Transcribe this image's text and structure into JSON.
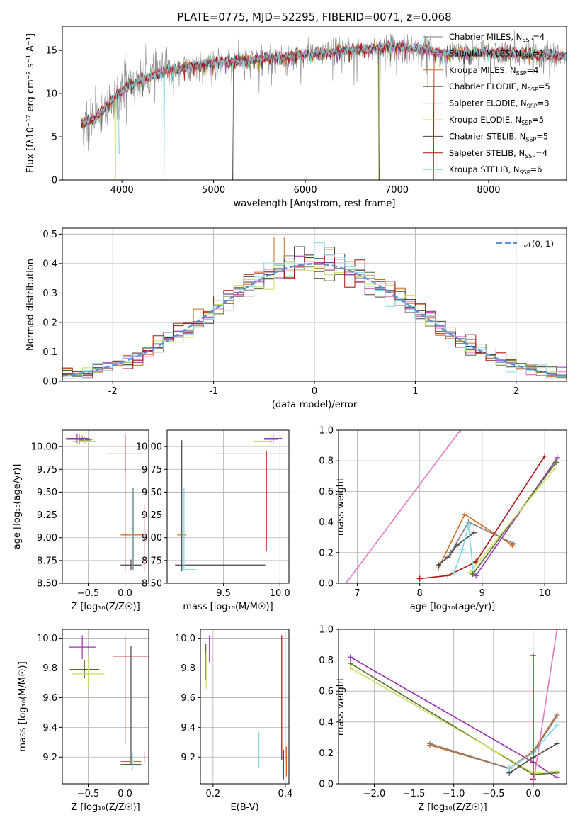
{
  "colors": {
    "ChabrierMILES": "#7f7f7f",
    "SalpeterMILES": "#e377c2",
    "KroupaMILES": "#d2691e",
    "ChabrierELODIE": "#556b2f",
    "SalpeterELODIE": "#9b30b5",
    "KroupaELODIE": "#c6e05a",
    "ChabrierSTELIB": "#444444",
    "SalpeterSTELIB": "#b01010",
    "KroupaSTELIB": "#7fd9e0",
    "gauss": "#5b8fd6"
  },
  "chart_data": [
    {
      "id": "spectrum",
      "type": "line",
      "title": "PLATE=0775, MJD=52295, FIBERID=0071, z=0.068",
      "xlabel": "wavelength [Angstrom, rest frame]",
      "ylabel": "Flux [fλ10⁻¹⁷ erg cm⁻² s⁻¹ A⁻¹]",
      "xlim": [
        3350,
        8850
      ],
      "ylim": [
        0,
        17.8
      ],
      "xticks": [
        4000,
        5000,
        6000,
        7000,
        8000
      ],
      "yticks": [
        0,
        5,
        10,
        15
      ],
      "grid": false,
      "legend_position": "right",
      "legend": [
        {
          "key": "ChabrierMILES",
          "label": "Chabrier MILES, N",
          "sub": "SSP",
          "tail": "=4"
        },
        {
          "key": "SalpeterMILES",
          "label": "Salpeter MILES, N",
          "sub": "SSP",
          "tail": "=2"
        },
        {
          "key": "KroupaMILES",
          "label": "Kroupa MILES, N",
          "sub": "SSP",
          "tail": "=4"
        },
        {
          "key": "ChabrierELODIE",
          "label": "Chabrier ELODIE, N",
          "sub": "SSP",
          "tail": "=5"
        },
        {
          "key": "SalpeterELODIE",
          "label": "Salpeter ELODIE, N",
          "sub": "SSP",
          "tail": "=3"
        },
        {
          "key": "KroupaELODIE",
          "label": "Kroupa ELODIE, N",
          "sub": "SSP",
          "tail": "=5"
        },
        {
          "key": "ChabrierSTELIB",
          "label": "Chabrier STELIB, N",
          "sub": "SSP",
          "tail": "=5"
        },
        {
          "key": "SalpeterSTELIB",
          "label": "Salpeter STELIB, N",
          "sub": "SSP",
          "tail": "=4"
        },
        {
          "key": "KroupaSTELIB",
          "label": "Kroupa STELIB, N",
          "sub": "SSP",
          "tail": "=6"
        }
      ],
      "continuum": [
        [
          3560,
          6.6
        ],
        [
          3700,
          7.0
        ],
        [
          3900,
          9.4
        ],
        [
          4000,
          10.4
        ],
        [
          4200,
          11.6
        ],
        [
          4500,
          12.7
        ],
        [
          5000,
          13.6
        ],
        [
          5500,
          14.0
        ],
        [
          6000,
          14.5
        ],
        [
          6500,
          15.0
        ],
        [
          6800,
          15.3
        ],
        [
          7000,
          15.4
        ],
        [
          7300,
          15.2
        ],
        [
          7500,
          14.6
        ],
        [
          8000,
          14.8
        ],
        [
          8400,
          14.6
        ],
        [
          8850,
          14.3
        ]
      ],
      "absorption": [
        [
          3930,
          0.2,
          "KroupaELODIE"
        ],
        [
          3970,
          3.0,
          "KroupaSTELIB"
        ],
        [
          4460,
          0.0,
          "KroupaSTELIB"
        ],
        [
          5205,
          0.0,
          "ChabrierSTELIB"
        ],
        [
          6800,
          0.0,
          "KroupaELODIE"
        ],
        [
          6810,
          0.0,
          "ChabrierSTELIB"
        ],
        [
          7400,
          0.0,
          "SalpeterSTELIB"
        ]
      ]
    },
    {
      "id": "residuals",
      "type": "line",
      "xlabel": "(data-model)/error",
      "ylabel": "Normed distribution",
      "xlim": [
        -2.5,
        2.5
      ],
      "ylim": [
        0,
        0.52
      ],
      "xticks": [
        -2,
        -1,
        0,
        1,
        2
      ],
      "yticks": [
        0.0,
        0.1,
        0.2,
        0.3,
        0.4,
        0.5
      ],
      "ytick_labels": [
        "0.0",
        "0.1",
        "0.2",
        "0.3",
        "0.4",
        "0.5"
      ],
      "grid": true,
      "legend_position": "top-right",
      "gauss_label": "𝒩(0, 1)"
    },
    {
      "id": "age_Z",
      "type": "scatter",
      "xlabel": "Z [log₁₀(Z/Z☉)]",
      "ylabel": "age  [log₁₀(age/yr)]",
      "xlim": [
        -0.85,
        0.32
      ],
      "ylim": [
        8.5,
        10.18
      ],
      "xticks": [
        -0.5,
        0.0
      ],
      "xtick_labels": [
        "−0.5",
        "0.0"
      ],
      "yticks": [
        8.5,
        8.75,
        9.0,
        9.25,
        9.5,
        9.75,
        10.0
      ],
      "ytick_labels": [
        "8.50",
        "8.75",
        "9.00",
        "9.25",
        "9.50",
        "9.75",
        "10.00"
      ],
      "grid": true,
      "crosses": [
        {
          "c": "ChabrierMILES",
          "x": -0.55,
          "y": 10.07,
          "dx": 0.08,
          "dy": 0.04
        },
        {
          "c": "KroupaMILES",
          "x": -0.58,
          "y": 10.09,
          "dx": 0.1,
          "dy": 0.03
        },
        {
          "c": "ChabrierELODIE",
          "x": -0.62,
          "y": 10.08,
          "dx": 0.18,
          "dy": 0.05
        },
        {
          "c": "SalpeterELODIE",
          "x": -0.65,
          "y": 10.09,
          "dx": 0.15,
          "dy": 0.05
        },
        {
          "c": "KroupaELODIE",
          "x": -0.55,
          "y": 10.06,
          "dx": 0.16,
          "dy": 0.03
        },
        {
          "c": "SalpeterSTELIB",
          "x": 0.0,
          "y": 9.92,
          "dx": 0.25,
          "dy": 0.21
        },
        {
          "c": "ChabrierSTELIB",
          "x": 0.08,
          "y": 8.7,
          "dx": 0.14,
          "dy": 0.06
        },
        {
          "c": "KroupaMILES",
          "x": 0.08,
          "y": 9.03,
          "dx": 0.14,
          "dy": 0.0
        },
        {
          "c": "KroupaSTELIB",
          "x": 0.1,
          "y": 9.1,
          "dx": 0.02,
          "dy": 0.45
        },
        {
          "c": "ChabrierMILES",
          "x": 0.11,
          "y": 9.1,
          "dx": 0.0,
          "dy": 0.45
        },
        {
          "c": "SalpeterMILES",
          "x": 0.26,
          "y": 9.0,
          "dx": 0.0,
          "dy": 0.37
        },
        {
          "c": "SalpeterSTELIB",
          "x": 0.0,
          "y": 9.4,
          "dx": 0.0,
          "dy": 0.75
        }
      ]
    },
    {
      "id": "age_mass",
      "type": "scatter",
      "xlabel": "mass [log₁₀(M/M☉)]",
      "xlim": [
        9.0,
        10.08
      ],
      "ylim": [
        8.5,
        10.18
      ],
      "xticks": [
        9.5,
        10.0
      ],
      "xtick_labels": [
        "9.5",
        "10.0"
      ],
      "yticks": [
        8.5,
        8.75,
        9.0,
        9.25,
        9.5,
        9.75,
        10.0
      ],
      "ytick_labels": [
        "8.50",
        "8.75",
        "9.00",
        "9.25",
        "9.50",
        "9.75",
        "10.00"
      ],
      "grid": true,
      "crosses": [
        {
          "c": "ChabrierSTELIB",
          "x": 9.47,
          "y": 8.7,
          "dx": 0.4,
          "dy": 0.0
        },
        {
          "c": "ChabrierSTELIB",
          "x": 9.13,
          "y": 9.35,
          "dx": 0.0,
          "dy": 0.72
        },
        {
          "c": "KroupaMILES",
          "x": 9.13,
          "y": 9.03,
          "dx": 0.04,
          "dy": 0.0
        },
        {
          "c": "KroupaSTELIB",
          "x": 9.15,
          "y": 9.1,
          "dx": 0.0,
          "dy": 0.45
        },
        {
          "c": "KroupaSTELIB",
          "x": 9.2,
          "y": 8.65,
          "dx": 0.06,
          "dy": 0.0
        },
        {
          "c": "SalpeterSTELIB",
          "x": 9.93,
          "y": 9.92,
          "dx": 0.5,
          "dy": 0.0
        },
        {
          "c": "SalpeterSTELIB",
          "x": 9.88,
          "y": 9.4,
          "dx": 0.0,
          "dy": 0.55
        },
        {
          "c": "KroupaELODIE",
          "x": 9.85,
          "y": 10.06,
          "dx": 0.08,
          "dy": 0.03
        },
        {
          "c": "ChabrierELODIE",
          "x": 9.92,
          "y": 10.08,
          "dx": 0.06,
          "dy": 0.05
        },
        {
          "c": "SalpeterELODIE",
          "x": 9.94,
          "y": 10.09,
          "dx": 0.08,
          "dy": 0.05
        }
      ]
    },
    {
      "id": "weight_age",
      "type": "line",
      "xlabel": "age  [log₁₀(age/yr)]",
      "ylabel": "mass weight",
      "xlim": [
        6.7,
        10.35
      ],
      "ylim": [
        0.0,
        1.0
      ],
      "xticks": [
        7,
        8,
        9,
        10
      ],
      "yticks": [
        0.0,
        0.2,
        0.4,
        0.6,
        0.8,
        1.0
      ],
      "ytick_labels": [
        "0.0",
        "0.2",
        "0.4",
        "0.6",
        "0.8",
        "1.0"
      ],
      "grid": true,
      "series": [
        {
          "c": "SalpeterMILES",
          "pts": [
            [
              6.82,
              0.0
            ],
            [
              8.65,
              1.0
            ]
          ]
        },
        {
          "c": "SalpeterSTELIB",
          "pts": [
            [
              8.0,
              0.03
            ],
            [
              8.45,
              0.05
            ],
            [
              8.9,
              0.14
            ],
            [
              10.0,
              0.83
            ]
          ]
        },
        {
          "c": "SalpeterELODIE",
          "pts": [
            [
              8.9,
              0.05
            ],
            [
              10.2,
              0.82
            ]
          ]
        },
        {
          "c": "ChabrierELODIE",
          "pts": [
            [
              8.85,
              0.06
            ],
            [
              10.18,
              0.79
            ]
          ]
        },
        {
          "c": "KroupaELODIE",
          "pts": [
            [
              8.8,
              0.07
            ],
            [
              10.16,
              0.75
            ]
          ]
        },
        {
          "c": "KroupaMILES",
          "pts": [
            [
              8.3,
              0.1
            ],
            [
              8.72,
              0.45
            ],
            [
              9.48,
              0.25
            ]
          ]
        },
        {
          "c": "ChabrierMILES",
          "pts": [
            [
              8.5,
              0.2
            ],
            [
              8.78,
              0.4
            ],
            [
              9.5,
              0.26
            ]
          ]
        },
        {
          "c": "ChabrierSTELIB",
          "pts": [
            [
              8.3,
              0.12
            ],
            [
              8.45,
              0.17
            ],
            [
              8.6,
              0.25
            ],
            [
              8.87,
              0.33
            ]
          ]
        },
        {
          "c": "KroupaSTELIB",
          "pts": [
            [
              8.55,
              0.07
            ],
            [
              8.68,
              0.22
            ],
            [
              8.78,
              0.38
            ],
            [
              8.85,
              0.1
            ]
          ]
        }
      ]
    },
    {
      "id": "mass_Z",
      "type": "scatter",
      "xlabel": "Z [log₁₀(Z/Z☉)]",
      "ylabel": "mass [log₁₀(M/M☉)]",
      "xlim": [
        -0.85,
        0.32
      ],
      "ylim": [
        9.02,
        10.06
      ],
      "xticks": [
        -0.5,
        0.0
      ],
      "xtick_labels": [
        "−0.5",
        "0.0"
      ],
      "yticks": [
        9.2,
        9.4,
        9.6,
        9.8,
        10.0
      ],
      "ytick_labels": [
        "9.2",
        "9.4",
        "9.6",
        "9.8",
        "10.0"
      ],
      "grid": true,
      "crosses": [
        {
          "c": "SalpeterELODIE",
          "x": -0.58,
          "y": 9.94,
          "dx": 0.18,
          "dy": 0.08
        },
        {
          "c": "ChabrierELODIE",
          "x": -0.55,
          "y": 9.79,
          "dx": 0.2,
          "dy": 0.06
        },
        {
          "c": "KroupaELODIE",
          "x": -0.5,
          "y": 9.76,
          "dx": 0.22,
          "dy": 0.1
        },
        {
          "c": "SalpeterSTELIB",
          "x": 0.08,
          "y": 9.88,
          "dx": 0.24,
          "dy": 0.0
        },
        {
          "c": "SalpeterSTELIB",
          "x": 0.0,
          "y": 9.65,
          "dx": 0.0,
          "dy": 0.36
        },
        {
          "c": "ChabrierSTELIB",
          "x": 0.08,
          "y": 9.15,
          "dx": 0.14,
          "dy": 0.0
        },
        {
          "c": "ChabrierSTELIB",
          "x": 0.08,
          "y": 9.55,
          "dx": 0.0,
          "dy": 0.4
        },
        {
          "c": "KroupaMILES",
          "x": 0.08,
          "y": 9.17,
          "dx": 0.14,
          "dy": 0.0
        },
        {
          "c": "KroupaSTELIB",
          "x": 0.1,
          "y": 9.17,
          "dx": 0.02,
          "dy": 0.06
        },
        {
          "c": "SalpeterMILES",
          "x": 0.26,
          "y": 9.2,
          "dx": 0.0,
          "dy": 0.04
        }
      ]
    },
    {
      "id": "mass_EBV",
      "type": "scatter",
      "xlabel": "E(B-V)",
      "xlim": [
        0.165,
        0.41
      ],
      "ylim": [
        9.02,
        10.06
      ],
      "xticks": [
        0.2,
        0.4
      ],
      "xtick_labels": [
        "0.2",
        "0.4"
      ],
      "yticks": [
        9.2,
        9.4,
        9.6,
        9.8,
        10.0
      ],
      "ytick_labels": [
        "9.2",
        "9.4",
        "9.6",
        "9.8",
        "10.0"
      ],
      "grid": true,
      "crosses": [
        {
          "c": "ChabrierELODIE",
          "x": 0.18,
          "y": 9.84,
          "dx": 0.0,
          "dy": 0.12
        },
        {
          "c": "KroupaELODIE",
          "x": 0.181,
          "y": 9.78,
          "dx": 0.0,
          "dy": 0.12
        },
        {
          "c": "SalpeterELODIE",
          "x": 0.19,
          "y": 9.93,
          "dx": 0.0,
          "dy": 0.09
        },
        {
          "c": "KroupaSTELIB",
          "x": 0.327,
          "y": 9.25,
          "dx": 0.0,
          "dy": 0.12
        },
        {
          "c": "SalpeterSTELIB",
          "x": 0.39,
          "y": 9.6,
          "dx": 0.0,
          "dy": 0.42
        },
        {
          "c": "ChabrierSTELIB",
          "x": 0.395,
          "y": 9.15,
          "dx": 0.0,
          "dy": 0.1
        },
        {
          "c": "KroupaMILES",
          "x": 0.403,
          "y": 9.17,
          "dx": 0.0,
          "dy": 0.1
        },
        {
          "c": "SalpeterMILES",
          "x": 0.4,
          "y": 9.22,
          "dx": 0.0,
          "dy": 0.05
        }
      ]
    },
    {
      "id": "weight_Z",
      "type": "line",
      "xlabel": "Z [log₁₀(Z/Z☉)]",
      "ylabel": "mass weight",
      "xlim": [
        -2.45,
        0.42
      ],
      "ylim": [
        0.0,
        1.0
      ],
      "xticks": [
        -2.0,
        -1.5,
        -1.0,
        -0.5,
        0.0
      ],
      "xtick_labels": [
        "−2.0",
        "−1.5",
        "−1.0",
        "−0.5",
        "0.0"
      ],
      "yticks": [
        0.0,
        0.2,
        0.4,
        0.6,
        0.8,
        1.0
      ],
      "ytick_labels": [
        "0.0",
        "0.2",
        "0.4",
        "0.6",
        "0.8",
        "1.0"
      ],
      "grid": true,
      "series": [
        {
          "c": "SalpeterELODIE",
          "pts": [
            [
              -2.3,
              0.82
            ],
            [
              0.0,
              0.14
            ],
            [
              0.3,
              0.04
            ]
          ]
        },
        {
          "c": "ChabrierELODIE",
          "pts": [
            [
              -2.3,
              0.78
            ],
            [
              0.0,
              0.06
            ],
            [
              0.3,
              0.07
            ]
          ]
        },
        {
          "c": "KroupaELODIE",
          "pts": [
            [
              -2.3,
              0.75
            ],
            [
              0.0,
              0.07
            ],
            [
              0.3,
              0.08
            ]
          ]
        },
        {
          "c": "KroupaMILES",
          "pts": [
            [
              -1.3,
              0.25
            ],
            [
              -0.3,
              0.1
            ],
            [
              0.0,
              0.21
            ],
            [
              0.3,
              0.45
            ]
          ]
        },
        {
          "c": "ChabrierMILES",
          "pts": [
            [
              -1.3,
              0.26
            ],
            [
              -0.3,
              0.1
            ],
            [
              0.0,
              0.2
            ],
            [
              0.3,
              0.44
            ]
          ]
        },
        {
          "c": "ChabrierSTELIB",
          "pts": [
            [
              -0.3,
              0.07
            ],
            [
              0.0,
              0.17
            ],
            [
              0.3,
              0.26
            ]
          ]
        },
        {
          "c": "KroupaSTELIB",
          "pts": [
            [
              -0.3,
              0.1
            ],
            [
              0.0,
              0.2
            ],
            [
              0.3,
              0.38
            ]
          ]
        },
        {
          "c": "SalpeterSTELIB",
          "pts": [
            [
              0.0,
              0.03
            ],
            [
              0.0,
              0.83
            ]
          ]
        },
        {
          "c": "SalpeterMILES",
          "pts": [
            [
              0.0,
              0.0
            ],
            [
              0.3,
              1.0
            ]
          ]
        }
      ]
    }
  ]
}
